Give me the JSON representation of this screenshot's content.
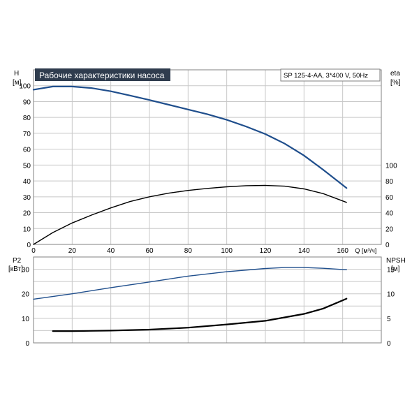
{
  "chart_data": [
    {
      "type": "line",
      "title": "Рабочие характеристики насоса",
      "model": "SP 125-4-AA, 3*400 V, 50Hz",
      "left_axis": {
        "name": "H",
        "unit": "[м]",
        "ylim": [
          0,
          110
        ],
        "ticks": [
          0,
          10,
          20,
          30,
          40,
          50,
          60,
          70,
          80,
          90,
          100
        ]
      },
      "right_axis": {
        "name": "eta",
        "unit": "[%]",
        "ticks": [
          0,
          20,
          40,
          60,
          80,
          100
        ]
      },
      "x_axis": {
        "label": "Q [м³/ч]",
        "xlim": [
          0,
          180
        ],
        "ticks": [
          0,
          20,
          40,
          60,
          80,
          100,
          120,
          140,
          160
        ]
      },
      "grid": true,
      "series": [
        {
          "color": "#1f4e8c",
          "x": [
            0,
            10,
            20,
            30,
            40,
            50,
            60,
            70,
            80,
            90,
            100,
            110,
            120,
            130,
            140,
            150,
            162
          ],
          "y": [
            97.5,
            99.5,
            99.5,
            98.5,
            96.5,
            93.8,
            91.0,
            88.0,
            85.0,
            82.0,
            78.5,
            74.3,
            69.5,
            63.5,
            56.0,
            47.0,
            35.5
          ]
        },
        {
          "color": "#000000",
          "x": [
            0,
            10,
            20,
            30,
            40,
            50,
            60,
            70,
            80,
            90,
            100,
            110,
            120,
            130,
            140,
            150,
            162
          ],
          "y": [
            0,
            7.5,
            13.5,
            18.5,
            23.0,
            27.0,
            30.0,
            32.3,
            34.0,
            35.3,
            36.3,
            37.0,
            37.2,
            36.7,
            35.0,
            32.0,
            26.5
          ]
        }
      ]
    },
    {
      "type": "line",
      "left_axis": {
        "name": "P2",
        "unit": "[кВт]",
        "ylim": [
          0,
          35
        ],
        "ticks": [
          0,
          10,
          20,
          30
        ]
      },
      "right_axis": {
        "name": "NPSH",
        "unit": "[м]",
        "ylim": [
          0,
          17.5
        ],
        "ticks": [
          0,
          5,
          10,
          15
        ]
      },
      "x_axis": {
        "xlim": [
          0,
          180
        ]
      },
      "grid": true,
      "series": [
        {
          "color": "#1f4e8c",
          "x": [
            0,
            20,
            40,
            60,
            80,
            100,
            120,
            130,
            140,
            150,
            162
          ],
          "y": [
            17.8,
            20.0,
            22.5,
            24.8,
            27.2,
            29.0,
            30.3,
            30.7,
            30.7,
            30.4,
            29.8
          ]
        },
        {
          "color": "#000000",
          "x": [
            10,
            20,
            40,
            60,
            80,
            100,
            120,
            140,
            150,
            162
          ],
          "y": [
            4.8,
            4.8,
            5.0,
            5.4,
            6.2,
            7.5,
            9.0,
            11.8,
            14.0,
            18.0
          ]
        }
      ]
    }
  ]
}
